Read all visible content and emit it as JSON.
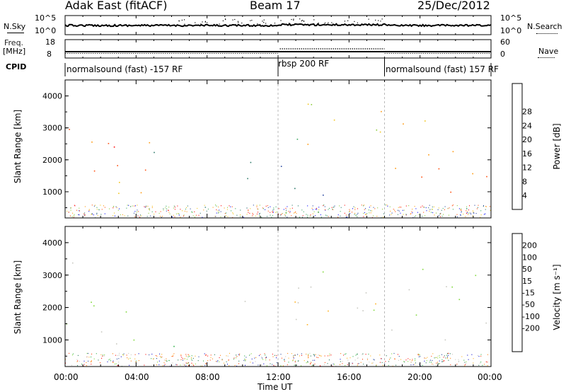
{
  "header": {
    "radar": "Adak East (fitACF)",
    "beam": "Beam 17",
    "date": "25/Dec/2012"
  },
  "strips": {
    "nsky_label": "N.Sky",
    "nsearch_label": "N.Search",
    "noise_tick_top": "10^5",
    "noise_tick_bottom": "10^0",
    "freq_label_top": "Freq.",
    "freq_label_unit": "[MHz]",
    "freq_tick_top": "18",
    "freq_tick_bottom": "8",
    "nave_label": "Nave",
    "nave_tick_top": "60",
    "nave_tick_bottom": "0",
    "cpid_label": "CPID"
  },
  "modes": [
    {
      "label": "normalsound (fast) -157 RF",
      "start": "00:00",
      "end": "12:00"
    },
    {
      "label": "rbsp 200 RF",
      "start": "12:00",
      "end": "18:00"
    },
    {
      "label": "normalsound (fast) 157 RF",
      "start": "18:00",
      "end": "24:00"
    }
  ],
  "axes": {
    "ylabel": "Slant Range [km]",
    "xlabel": "Time UT",
    "xticks": [
      "00:00",
      "04:00",
      "08:00",
      "12:00",
      "16:00",
      "20:00",
      "00:00"
    ],
    "yticks": [
      "1000",
      "2000",
      "3000",
      "4000"
    ]
  },
  "colorbars": {
    "power": {
      "label": "Power [dB]",
      "ticks": [
        "4",
        "8",
        "12",
        "16",
        "20",
        "24",
        "28"
      ],
      "colors": [
        "#1010ff",
        "#2a48a0",
        "#2f7a6a",
        "#3aa860",
        "#8ccc3a",
        "#f2c51a",
        "#ff9a10",
        "#ff5010",
        "#ff1010"
      ]
    },
    "velocity": {
      "label": "Velocity [m s⁻¹]",
      "ticks": [
        "200",
        "100",
        "50",
        "15",
        "-15",
        "-50",
        "-100",
        "-200"
      ],
      "colors": [
        "#1515d0",
        "#2a4aa0",
        "#2a7a55",
        "#33b24a",
        "#7fd83a",
        "#c8c8c0",
        "#ffb020",
        "#ff8010",
        "#ff4010",
        "#ff1010"
      ]
    }
  },
  "chart_data": [
    {
      "type": "heatmap",
      "name": "power",
      "x_range": [
        "00:00",
        "24:00"
      ],
      "y_range_km": [
        180,
        4500
      ],
      "value_unit": "dB",
      "value_range": [
        0,
        31
      ],
      "scatter_regions": [
        {
          "t0": 0.0,
          "t1": 3.0,
          "r_top": 3300,
          "r_bot": 700,
          "value": 25
        },
        {
          "t0": 1.5,
          "t1": 5.8,
          "r_top": 2800,
          "r_bot": 700,
          "value": 22
        },
        {
          "t0": 4.8,
          "t1": 5.6,
          "r_top": 2800,
          "r_bot": 1800,
          "value": 12
        },
        {
          "t0": 10.0,
          "t1": 15.5,
          "r_top": 2200,
          "r_bot": 900,
          "value": 9
        },
        {
          "t0": 12.8,
          "t1": 18.0,
          "r_top": 3800,
          "r_bot": 1600,
          "value": 18
        },
        {
          "t0": 18.0,
          "t1": 24.0,
          "r_top": 3300,
          "r_bot": 750,
          "value": 23
        }
      ]
    },
    {
      "type": "heatmap",
      "name": "velocity",
      "x_range": [
        "00:00",
        "24:00"
      ],
      "y_range_km": [
        180,
        4500
      ],
      "value_unit": "m s-1",
      "value_range": [
        -200,
        200
      ],
      "scatter_regions": [
        {
          "t0": 0.0,
          "t1": 4.5,
          "r_top": 3400,
          "r_bot": 700,
          "value": 0
        },
        {
          "t0": 4.8,
          "t1": 6.5,
          "r_top": 1200,
          "r_bot": 300,
          "value": 40
        },
        {
          "t0": 10.0,
          "t1": 18.0,
          "r_top": 2300,
          "r_bot": 800,
          "value": -40
        },
        {
          "t0": 13.0,
          "t1": 18.0,
          "r_top": 3600,
          "r_bot": 1700,
          "value": 0
        },
        {
          "t0": 18.0,
          "t1": 24.0,
          "r_top": 3300,
          "r_bot": 800,
          "value": 0
        }
      ]
    }
  ]
}
